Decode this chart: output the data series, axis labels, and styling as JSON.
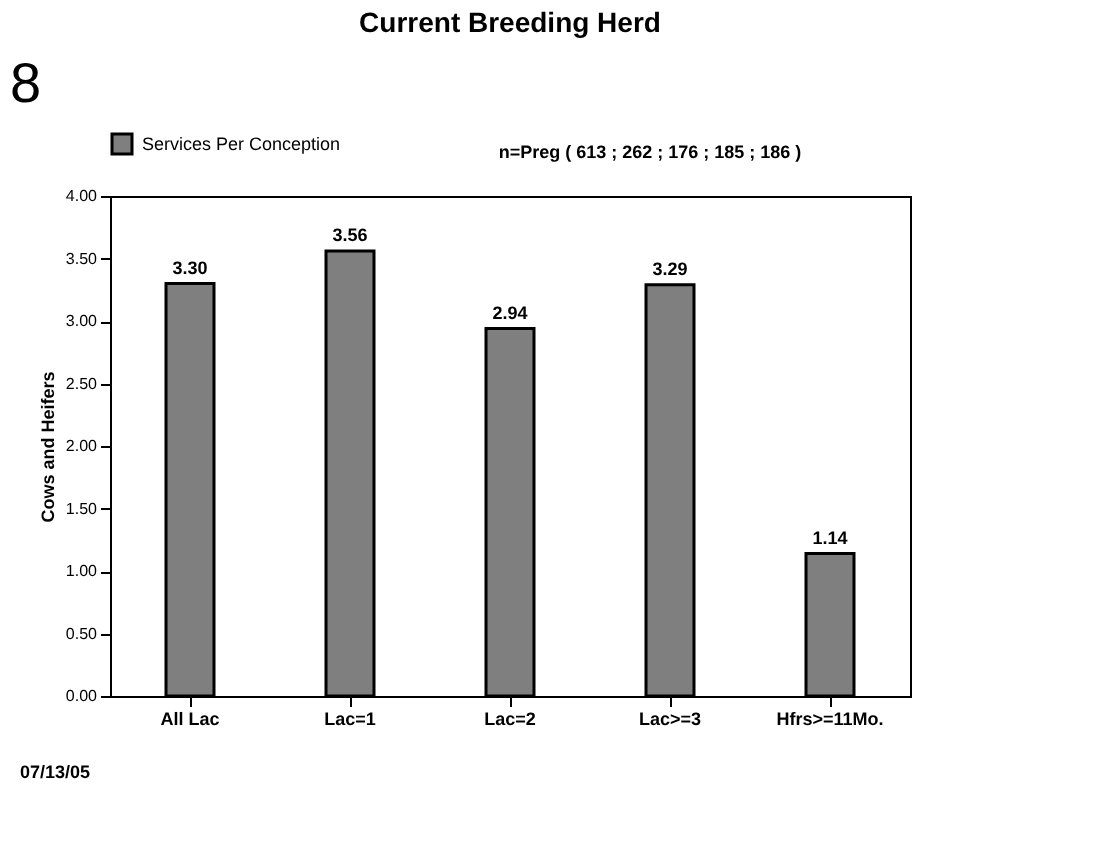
{
  "chart_data": {
    "type": "bar",
    "title": "Current Breeding Herd",
    "ylabel": "Cows and Heifers",
    "categories": [
      "All Lac",
      "Lac=1",
      "Lac=2",
      "Lac>=3",
      "Hfrs>=11Mo."
    ],
    "series": [
      {
        "name": "Services Per Conception",
        "color": "#7f7f7f",
        "values": [
          3.3,
          3.56,
          2.94,
          3.29,
          1.14
        ]
      }
    ],
    "value_labels": [
      "3.30",
      "3.56",
      "2.94",
      "3.29",
      "1.14"
    ],
    "ylim": [
      0,
      4
    ],
    "yticks": [
      {
        "value": 0,
        "label": "0.00"
      },
      {
        "value": 0.5,
        "label": "0.50"
      },
      {
        "value": 1,
        "label": "1.00"
      },
      {
        "value": 1.5,
        "label": "1.50"
      },
      {
        "value": 2,
        "label": "2.00"
      },
      {
        "value": 2.5,
        "label": "2.50"
      },
      {
        "value": 3,
        "label": "3.00"
      },
      {
        "value": 3.5,
        "label": "3.50"
      },
      {
        "value": 4,
        "label": "4.00"
      }
    ],
    "grid": false,
    "legend": "top",
    "annotations": [
      "8",
      "n=Preg ( 613 ; 262 ; 176 ; 185 ; 186 )",
      "07/13/05"
    ]
  }
}
